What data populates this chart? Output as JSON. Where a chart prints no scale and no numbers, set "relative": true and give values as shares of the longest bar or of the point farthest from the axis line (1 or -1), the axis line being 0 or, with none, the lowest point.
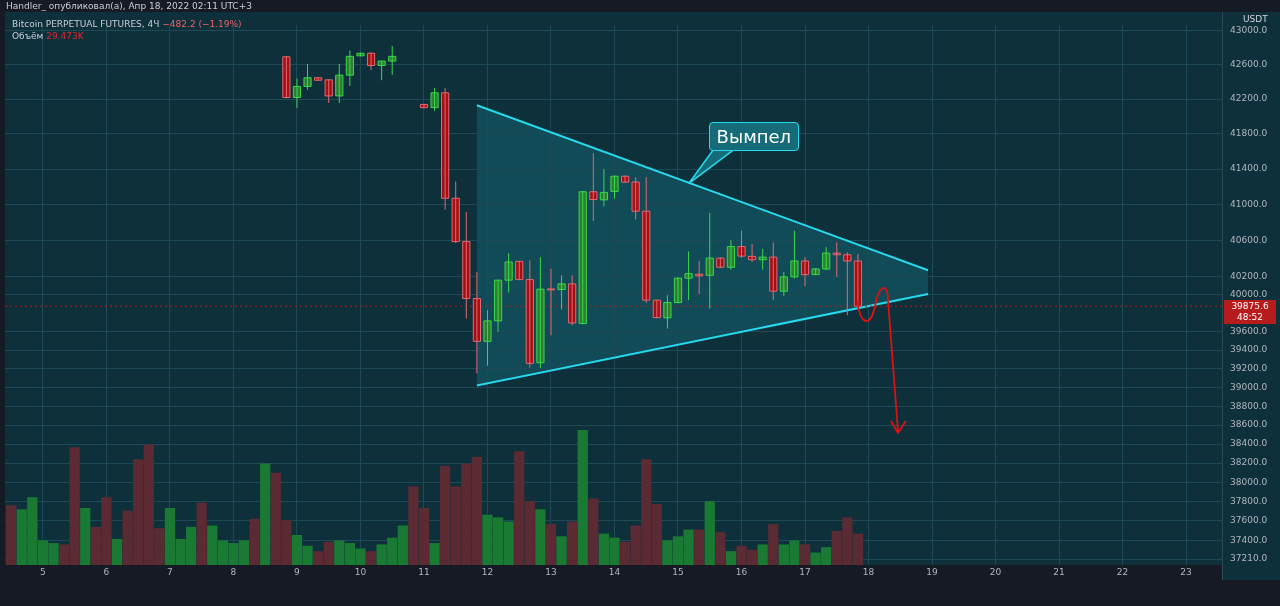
{
  "chart_data": [
    {
      "type": "candlestick",
      "title": "Bitcoin PERPETUAL FUTURES, 4Ч",
      "subtitle": "−482.2 (−1.19%)",
      "ylabel": "USDT",
      "log": "y",
      "grid": true,
      "tick_labels": "y",
      "x": [
        "2022-04-08T20:00",
        "2022-04-09T00:00",
        "2022-04-09T04:00",
        "2022-04-09T08:00",
        "2022-04-09T12:00",
        "2022-04-09T16:00",
        "2022-04-09T20:00",
        "2022-04-10T00:00",
        "2022-04-10T04:00",
        "2022-04-10T08:00",
        "2022-04-10T12:00",
        "2022-04-11T00:00",
        "2022-04-11T04:00",
        "2022-04-11T08:00",
        "2022-04-11T12:00",
        "2022-04-11T16:00",
        "2022-04-11T20:00",
        "2022-04-12T00:00",
        "2022-04-12T04:00",
        "2022-04-12T08:00",
        "2022-04-12T12:00",
        "2022-04-12T16:00",
        "2022-04-12T20:00",
        "2022-04-13T00:00",
        "2022-04-13T04:00",
        "2022-04-13T08:00",
        "2022-04-13T12:00",
        "2022-04-13T16:00",
        "2022-04-13T20:00",
        "2022-04-14T00:00",
        "2022-04-14T04:00",
        "2022-04-14T08:00",
        "2022-04-14T12:00",
        "2022-04-14T16:00",
        "2022-04-14T20:00",
        "2022-04-15T00:00",
        "2022-04-15T04:00",
        "2022-04-15T08:00",
        "2022-04-15T12:00",
        "2022-04-15T16:00",
        "2022-04-15T20:00",
        "2022-04-16T00:00",
        "2022-04-16T04:00",
        "2022-04-16T08:00",
        "2022-04-16T12:00",
        "2022-04-16T16:00",
        "2022-04-16T20:00",
        "2022-04-17T00:00",
        "2022-04-17T04:00",
        "2022-04-17T08:00",
        "2022-04-17T12:00",
        "2022-04-17T16:00",
        "2022-04-17T20:00"
      ],
      "ohlc": [
        [
          42692,
          42700,
          42210,
          42219
        ],
        [
          42219,
          42437,
          42099,
          42347
        ],
        [
          42347,
          42609,
          42310,
          42448
        ],
        [
          42448,
          42448,
          42410,
          42419
        ],
        [
          42423,
          42430,
          42156,
          42237
        ],
        [
          42237,
          42609,
          42156,
          42478
        ],
        [
          42478,
          42765,
          42353,
          42697
        ],
        [
          42703,
          42740,
          42700,
          42733
        ],
        [
          42733,
          42740,
          42536,
          42590
        ],
        [
          42590,
          42645,
          42419,
          42642
        ],
        [
          42642,
          42820,
          42481,
          42697
        ],
        [
          42139,
          42139,
          42095,
          42102
        ],
        [
          42102,
          42328,
          42066,
          42273
        ],
        [
          42273,
          42328,
          40943,
          41071
        ],
        [
          41071,
          41260,
          40570,
          40587
        ],
        [
          40587,
          40918,
          39741,
          39960
        ],
        [
          39960,
          40251,
          39150,
          39494
        ],
        [
          39494,
          39833,
          39232,
          39716
        ],
        [
          39716,
          40165,
          39596,
          40161
        ],
        [
          40161,
          40459,
          40025,
          40361
        ],
        [
          40368,
          40370,
          40160,
          40167
        ],
        [
          40167,
          40379,
          39213,
          39257
        ],
        [
          39264,
          40415,
          39205,
          40062
        ],
        [
          40065,
          40287,
          39559,
          40060
        ],
        [
          40058,
          40215,
          39839,
          40120
        ],
        [
          40120,
          40215,
          39669,
          39694
        ],
        [
          39687,
          41150,
          39680,
          41144
        ],
        [
          41144,
          41582,
          40816,
          41057
        ],
        [
          41053,
          41399,
          40980,
          41137
        ],
        [
          41148,
          41330,
          41064,
          41319
        ],
        [
          41319,
          41330,
          41250,
          41253
        ],
        [
          41254,
          41308,
          40834,
          40926
        ],
        [
          40926,
          41308,
          39913,
          39942
        ],
        [
          39942,
          39945,
          39745,
          39752
        ],
        [
          39749,
          39996,
          39632,
          39916
        ],
        [
          39916,
          40190,
          39910,
          40183
        ],
        [
          40183,
          40478,
          39942,
          40233
        ],
        [
          40226,
          40372,
          40007,
          40208
        ],
        [
          40215,
          40907,
          39850,
          40404
        ],
        [
          40404,
          40410,
          40300,
          40303
        ],
        [
          40303,
          40604,
          40277,
          40532
        ],
        [
          40532,
          40707,
          40408,
          40426
        ],
        [
          40423,
          40561,
          40361,
          40386
        ],
        [
          40386,
          40506,
          40277,
          40415
        ],
        [
          40415,
          40579,
          39942,
          40040
        ],
        [
          40040,
          40251,
          39986,
          40197
        ],
        [
          40197,
          40707,
          40178,
          40372
        ],
        [
          40372,
          40415,
          40095,
          40222
        ],
        [
          40222,
          40290,
          40220,
          40284
        ],
        [
          40284,
          40525,
          40270,
          40459
        ],
        [
          40459,
          40579,
          40197,
          40441
        ],
        [
          40441,
          40470,
          39778,
          40372
        ],
        [
          40372,
          40451,
          39870,
          39875.6
        ]
      ],
      "series": [
        {
          "type": "line",
          "color": "#26d9ec",
          "x": [
            "2022-04-11T20:00",
            "2022-04-18T22:30"
          ],
          "values": [
            42130,
            40270
          ]
        },
        {
          "type": "line",
          "color": "#26d9ec",
          "x": [
            "2022-04-11T20:00",
            "2022-04-18T22:30"
          ],
          "values": [
            39020,
            40010
          ]
        }
      ],
      "xlim": [
        "2022-04-04T09:40",
        "2022-04-23T13:35"
      ],
      "ylim": [
        37150,
        43060
      ],
      "yticks": [
        {
          "value": 43000,
          "label": "43000.0"
        },
        {
          "value": 42600,
          "label": "42600.0"
        },
        {
          "value": 42200,
          "label": "42200.0"
        },
        {
          "value": 41800,
          "label": "41800.0"
        },
        {
          "value": 41400,
          "label": "41400.0"
        },
        {
          "value": 41000,
          "label": "41000.0"
        },
        {
          "value": 40600,
          "label": "40600.0"
        },
        {
          "value": 40200,
          "label": "40200.0"
        },
        {
          "value": 40000,
          "label": "40000.0"
        },
        {
          "value": 39600,
          "label": "39600.0"
        },
        {
          "value": 39400,
          "label": "39400.0"
        },
        {
          "value": 39200,
          "label": "39200.0"
        },
        {
          "value": 39000,
          "label": "39000.0"
        },
        {
          "value": 38800,
          "label": "38800.0"
        },
        {
          "value": 38600,
          "label": "38600.0"
        },
        {
          "value": 38400,
          "label": "38400.0"
        },
        {
          "value": 38200,
          "label": "38200.0"
        },
        {
          "value": 38000,
          "label": "38000.0"
        },
        {
          "value": 37800,
          "label": "37800.0"
        },
        {
          "value": 37600,
          "label": "37600.0"
        },
        {
          "value": 37400,
          "label": "37400.0"
        },
        {
          "value": 37210,
          "label": "37210.0"
        }
      ],
      "xticks": [
        {
          "value": "2022-04-05",
          "label": null
        },
        {
          "value": "2022-04-06",
          "label": null
        },
        {
          "value": "2022-04-07",
          "label": null
        },
        {
          "value": "2022-04-08",
          "label": null
        },
        {
          "value": "2022-04-09",
          "label": null
        },
        {
          "value": "2022-04-10",
          "label": null
        },
        {
          "value": "2022-04-11",
          "label": null
        },
        {
          "value": "2022-04-12",
          "label": null
        },
        {
          "value": "2022-04-13",
          "label": null
        },
        {
          "value": "2022-04-14",
          "label": null
        },
        {
          "value": "2022-04-15",
          "label": null
        },
        {
          "value": "2022-04-16",
          "label": null
        },
        {
          "value": "2022-04-17",
          "label": null
        },
        {
          "value": "2022-04-18",
          "label": null
        },
        {
          "value": "2022-04-19",
          "label": null
        },
        {
          "value": "2022-04-20",
          "label": null
        },
        {
          "value": "2022-04-21",
          "label": null
        },
        {
          "value": "2022-04-22",
          "label": null
        },
        {
          "value": "2022-04-23",
          "label": null
        }
      ],
      "ref_lines": [
        {
          "axis": "y",
          "value": 39875.6,
          "label": "39875.6",
          "color": "#b71c1c",
          "line_style": "dotted"
        }
      ],
      "annotations": [
        "Handler_ опубликовал(а), Апр 18, 2022 02:11 UTC+3",
        "Объём 29.473K",
        "48:52",
        {
          "text": "Вымпел",
          "x": "2022-04-15T04:00",
          "y": 41235
        }
      ]
    },
    {
      "type": "bar",
      "relative": true,
      "tick_labels": "x",
      "x": [
        "2022-04-04T12:00",
        "2022-04-04T16:00",
        "2022-04-04T20:00",
        "2022-04-05T00:00",
        "2022-04-05T04:00",
        "2022-04-05T08:00",
        "2022-04-05T12:00",
        "2022-04-05T16:00",
        "2022-04-05T20:00",
        "2022-04-06T00:00",
        "2022-04-06T04:00",
        "2022-04-06T08:00",
        "2022-04-06T12:00",
        "2022-04-06T16:00",
        "2022-04-06T20:00",
        "2022-04-07T00:00",
        "2022-04-07T04:00",
        "2022-04-07T08:00",
        "2022-04-07T12:00",
        "2022-04-07T16:00",
        "2022-04-07T20:00",
        "2022-04-08T00:00",
        "2022-04-08T04:00",
        "2022-04-08T08:00",
        "2022-04-08T12:00",
        "2022-04-08T16:00",
        "2022-04-08T20:00",
        "2022-04-09T00:00",
        "2022-04-09T04:00",
        "2022-04-09T08:00",
        "2022-04-09T12:00",
        "2022-04-09T16:00",
        "2022-04-09T20:00",
        "2022-04-10T00:00",
        "2022-04-10T04:00",
        "2022-04-10T08:00",
        "2022-04-10T12:00",
        "2022-04-10T16:00",
        "2022-04-10T20:00",
        "2022-04-11T00:00",
        "2022-04-11T04:00",
        "2022-04-11T08:00",
        "2022-04-11T12:00",
        "2022-04-11T16:00",
        "2022-04-11T20:00",
        "2022-04-12T00:00",
        "2022-04-12T04:00",
        "2022-04-12T08:00",
        "2022-04-12T12:00",
        "2022-04-12T16:00",
        "2022-04-12T20:00",
        "2022-04-13T00:00",
        "2022-04-13T04:00",
        "2022-04-13T08:00",
        "2022-04-13T12:00",
        "2022-04-13T16:00",
        "2022-04-13T20:00",
        "2022-04-14T00:00",
        "2022-04-14T04:00",
        "2022-04-14T08:00",
        "2022-04-14T12:00",
        "2022-04-14T16:00",
        "2022-04-14T20:00",
        "2022-04-15T00:00",
        "2022-04-15T04:00",
        "2022-04-15T08:00",
        "2022-04-15T12:00",
        "2022-04-15T16:00",
        "2022-04-15T20:00",
        "2022-04-16T00:00",
        "2022-04-16T04:00",
        "2022-04-16T08:00",
        "2022-04-16T12:00",
        "2022-04-16T16:00",
        "2022-04-16T20:00",
        "2022-04-17T00:00",
        "2022-04-17T04:00",
        "2022-04-17T08:00",
        "2022-04-17T12:00",
        "2022-04-17T16:00",
        "2022-04-17T20:00"
      ],
      "values": [
        0.44,
        0.41,
        0.5,
        0.18,
        0.16,
        0.15,
        0.87,
        0.42,
        0.28,
        0.5,
        0.19,
        0.4,
        0.78,
        0.89,
        0.27,
        0.42,
        0.19,
        0.28,
        0.46,
        0.29,
        0.18,
        0.16,
        0.18,
        0.34,
        0.75,
        0.68,
        0.33,
        0.22,
        0.14,
        0.1,
        0.17,
        0.18,
        0.16,
        0.12,
        0.1,
        0.15,
        0.2,
        0.29,
        0.58,
        0.42,
        0.16,
        0.73,
        0.58,
        0.75,
        0.8,
        0.37,
        0.35,
        0.32,
        0.84,
        0.47,
        0.41,
        0.3,
        0.21,
        0.32,
        1,
        0.49,
        0.23,
        0.2,
        0.17,
        0.29,
        0.78,
        0.45,
        0.18,
        0.21,
        0.26,
        0.26,
        0.47,
        0.24,
        0.1,
        0.14,
        0.11,
        0.15,
        0.3,
        0.15,
        0.18,
        0.15,
        0.09,
        0.13,
        0.25,
        0.35,
        0.23
      ],
      "colors": [
        "#5b2a32",
        "#1a7a34",
        "#1a7a34",
        "#1a7a34",
        "#1a7a34",
        "#5b2a32",
        "#5b2a32",
        "#1a7a34",
        "#5b2a32",
        "#5b2a32",
        "#1a7a34",
        "#5b2a32",
        "#5b2a32",
        "#5b2a32",
        "#5b2a32",
        "#1a7a34",
        "#1a7a34",
        "#1a7a34",
        "#5b2a32",
        "#1a7a34",
        "#1a7a34",
        "#1a7a34",
        "#1a7a34",
        "#5b2a32",
        "#1a7a34",
        "#5b2a32",
        "#5b2a32",
        "#1a7a34",
        "#1a7a34",
        "#5b2a32",
        "#5b2a32",
        "#1a7a34",
        "#1a7a34",
        "#1a7a34",
        "#5b2a32",
        "#1a7a34",
        "#1a7a34",
        "#1a7a34",
        "#5b2a32",
        "#5b2a32",
        "#1a7a34",
        "#5b2a32",
        "#5b2a32",
        "#5b2a32",
        "#5b2a32",
        "#1a7a34",
        "#1a7a34",
        "#1a7a34",
        "#5b2a32",
        "#5b2a32",
        "#1a7a34",
        "#5b2a32",
        "#1a7a34",
        "#5b2a32",
        "#1a7a34",
        "#5b2a32",
        "#1a7a34",
        "#1a7a34",
        "#5b2a32",
        "#5b2a32",
        "#5b2a32",
        "#5b2a32",
        "#1a7a34",
        "#1a7a34",
        "#1a7a34",
        "#5b2a32",
        "#1a7a34",
        "#5b2a32",
        "#1a7a34",
        "#5b2a32",
        "#5b2a32",
        "#1a7a34",
        "#5b2a32",
        "#1a7a34",
        "#1a7a34",
        "#5b2a32",
        "#1a7a34",
        "#1a7a34",
        "#5b2a32",
        "#5b2a32",
        "#5b2a32"
      ],
      "xlim": [
        "2022-04-04T09:40",
        "2022-04-23T13:35"
      ],
      "xticks": [
        {
          "value": "2022-04-05",
          "label": "5"
        },
        {
          "value": "2022-04-06",
          "label": "6"
        },
        {
          "value": "2022-04-07",
          "label": "7"
        },
        {
          "value": "2022-04-08",
          "label": "8"
        },
        {
          "value": "2022-04-09",
          "label": "9"
        },
        {
          "value": "2022-04-10",
          "label": "10"
        },
        {
          "value": "2022-04-11",
          "label": "11"
        },
        {
          "value": "2022-04-12",
          "label": "12"
        },
        {
          "value": "2022-04-13",
          "label": "13"
        },
        {
          "value": "2022-04-14",
          "label": "14"
        },
        {
          "value": "2022-04-15",
          "label": "15"
        },
        {
          "value": "2022-04-16",
          "label": "16"
        },
        {
          "value": "2022-04-17",
          "label": "17"
        },
        {
          "value": "2022-04-18",
          "label": "18"
        },
        {
          "value": "2022-04-19",
          "label": "19"
        },
        {
          "value": "2022-04-20",
          "label": "20"
        },
        {
          "value": "2022-04-21",
          "label": "21"
        },
        {
          "value": "2022-04-22",
          "label": "22"
        },
        {
          "value": "2022-04-23",
          "label": "23"
        }
      ]
    }
  ]
}
